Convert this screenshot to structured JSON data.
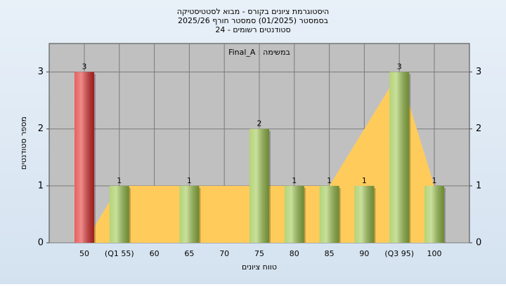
{
  "chart_data": {
    "type": "bar",
    "title": [
      "היסטוגרמת ציונים בקורס - מבוא לסטטיסטיקה",
      "בסמסטר  (01/2025)  סמסטר חורף 2025/26",
      "סטודנטים רשומים - 24"
    ],
    "annotation": "Final_A : במשימה",
    "x_label": "טווח ציונים",
    "y_label": "מספר סטודנטים",
    "categories": [
      "50",
      "(Q1 55)",
      "60",
      "65",
      "70",
      "75",
      "80",
      "85",
      "90",
      "(Q3 95)",
      "100"
    ],
    "series": [
      {
        "type": "bar",
        "values": [
          3,
          1,
          0,
          1,
          0,
          2,
          1,
          1,
          1,
          3,
          1
        ],
        "colors": [
          "#e02a2a",
          "#9cc54a",
          "#9cc54a",
          "#9cc54a",
          "#9cc54a",
          "#9cc54a",
          "#9cc54a",
          "#9cc54a",
          "#9cc54a",
          "#9cc54a",
          "#9cc54a"
        ]
      },
      {
        "type": "area",
        "values": [
          0,
          1,
          1,
          1,
          1,
          1,
          1,
          1,
          2,
          3,
          1
        ],
        "color": "#ffcc5c"
      }
    ],
    "ylim": [
      0,
      3.5
    ],
    "yticks": [
      0,
      1,
      2,
      3
    ],
    "grid": true
  }
}
